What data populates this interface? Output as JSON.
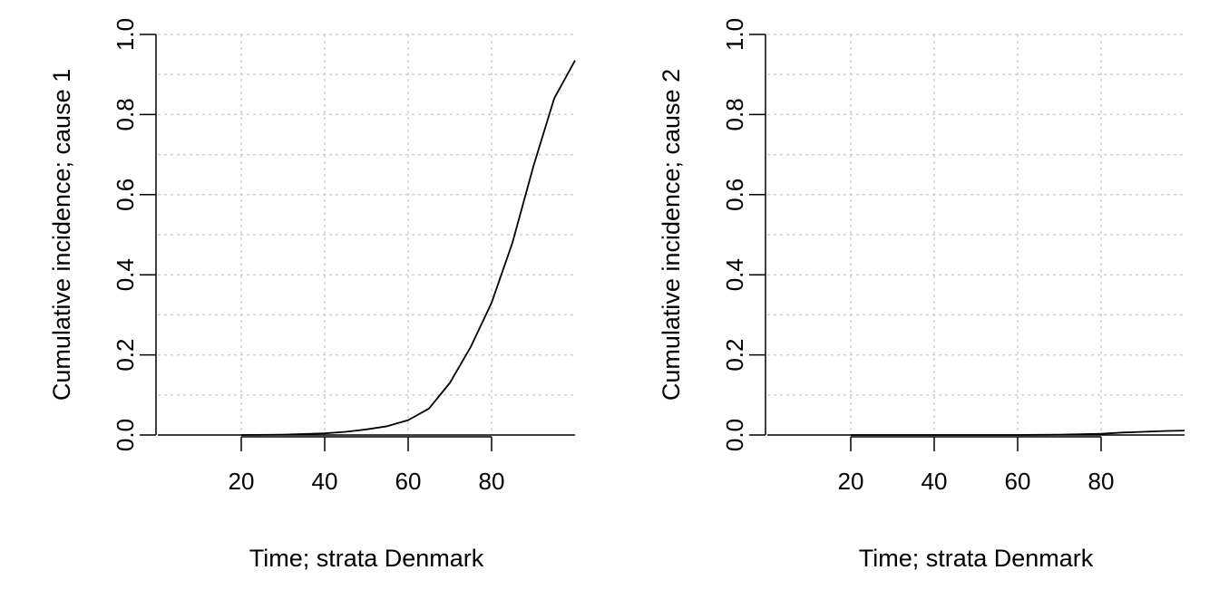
{
  "chart_data": [
    {
      "type": "line",
      "xlabel": "Time; strata Denmark",
      "ylabel": "Cumulative incidence; cause 1",
      "xlim": [
        0,
        100
      ],
      "ylim": [
        0,
        1
      ],
      "xticks": [
        "20",
        "40",
        "60",
        "80"
      ],
      "yticks": [
        "0.0",
        "0.2",
        "0.4",
        "0.6",
        "0.8",
        "1.0"
      ],
      "grid": true,
      "series": [
        {
          "x": [
            20,
            30,
            40,
            45,
            50,
            55,
            60,
            65,
            70,
            75,
            80,
            85,
            90,
            95,
            100
          ],
          "y": [
            0.0,
            0.001,
            0.004,
            0.008,
            0.014,
            0.022,
            0.037,
            0.066,
            0.13,
            0.22,
            0.33,
            0.48,
            0.67,
            0.84,
            0.935
          ]
        }
      ]
    },
    {
      "type": "line",
      "xlabel": "Time; strata Denmark",
      "ylabel": "Cumulative incidence; cause 2",
      "xlim": [
        0,
        100
      ],
      "ylim": [
        0,
        1
      ],
      "xticks": [
        "20",
        "40",
        "60",
        "80"
      ],
      "yticks": [
        "0.0",
        "0.2",
        "0.4",
        "0.6",
        "0.8",
        "1.0"
      ],
      "grid": true,
      "series": [
        {
          "x": [
            20,
            40,
            60,
            65,
            70,
            75,
            80,
            85,
            90,
            95,
            100
          ],
          "y": [
            0.0,
            0.0,
            0.0,
            0.0005,
            0.001,
            0.002,
            0.003,
            0.006,
            0.008,
            0.01,
            0.011
          ]
        }
      ]
    }
  ]
}
